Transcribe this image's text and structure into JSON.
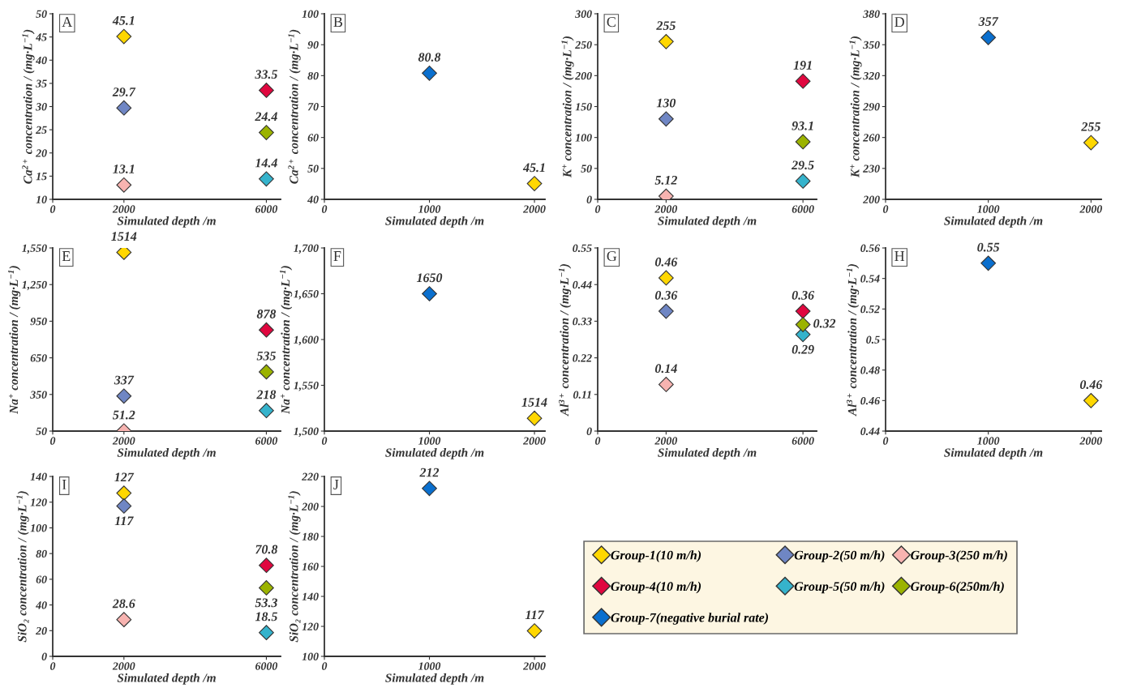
{
  "chart_data": [
    {
      "type": "scatter",
      "annotations": [
        "A"
      ],
      "xlabel": "Simulated depth /m",
      "ylabel": "Ca$^{2+}$ concentration / (mg·L$^{−1}$)",
      "xlim": [
        0,
        6400
      ],
      "xticks": [
        0,
        2000,
        6000
      ],
      "ylim": [
        10,
        50
      ],
      "yticks": [
        10,
        15,
        20,
        25,
        30,
        35,
        40,
        45,
        50
      ],
      "marker": "diamond",
      "data_labels": true,
      "grid": false,
      "legend": "bottom right",
      "series": [
        {
          "name": "Group-1(10 m/h)",
          "color": "#ffd700",
          "x": [
            2000
          ],
          "values": [
            45.1
          ]
        },
        {
          "name": "Group-2(50 m/h)",
          "color": "#6f86c4",
          "x": [
            2000
          ],
          "values": [
            29.7
          ]
        },
        {
          "name": "Group-3(250 m/h)",
          "color": "#f7b3b0",
          "x": [
            2000
          ],
          "values": [
            13.1
          ]
        },
        {
          "name": "Group-4(10 m/h)",
          "color": "#e0073f",
          "x": [
            6000
          ],
          "values": [
            33.5
          ]
        },
        {
          "name": "Group-5(50 m/h)",
          "color": "#35b3cc",
          "x": [
            6000
          ],
          "values": [
            14.4
          ]
        },
        {
          "name": "Group-6(250m/h)",
          "color": "#9bb300",
          "x": [
            6000
          ],
          "values": [
            24.4
          ]
        }
      ]
    },
    {
      "type": "scatter",
      "annotations": [
        "B"
      ],
      "xlabel": "Simulated depth /m",
      "ylabel": "Ca$^{2+}$ concentration / (mg·L$^{−1}$)",
      "xlim": [
        0,
        2100
      ],
      "xticks": [
        0,
        1000,
        2000
      ],
      "ylim": [
        40,
        100
      ],
      "yticks": [
        40,
        50,
        60,
        70,
        80,
        90,
        100
      ],
      "marker": "diamond",
      "data_labels": true,
      "grid": false,
      "series": [
        {
          "name": "Group-7(negative burial rate)",
          "color": "#0a6fce",
          "x": [
            1000
          ],
          "values": [
            80.8
          ]
        },
        {
          "name": "Group-1(10 m/h)",
          "color": "#ffd700",
          "x": [
            2000
          ],
          "values": [
            45.1
          ]
        }
      ]
    },
    {
      "type": "scatter",
      "annotations": [
        "C"
      ],
      "xlabel": "Simulated depth /m",
      "ylabel": "K$^{+}$ concentration / (mg·L$^{−1}$)",
      "xlim": [
        0,
        6400
      ],
      "xticks": [
        0,
        2000,
        6000
      ],
      "ylim": [
        0,
        300
      ],
      "yticks": [
        0,
        50,
        100,
        150,
        200,
        250,
        300
      ],
      "marker": "diamond",
      "data_labels": true,
      "grid": false,
      "series": [
        {
          "name": "Group-1(10 m/h)",
          "color": "#ffd700",
          "x": [
            2000
          ],
          "values": [
            255
          ]
        },
        {
          "name": "Group-2(50 m/h)",
          "color": "#6f86c4",
          "x": [
            2000
          ],
          "values": [
            130
          ]
        },
        {
          "name": "Group-3(250 m/h)",
          "color": "#f7b3b0",
          "x": [
            2000
          ],
          "values": [
            5.12
          ]
        },
        {
          "name": "Group-4(10 m/h)",
          "color": "#e0073f",
          "x": [
            6000
          ],
          "values": [
            191
          ]
        },
        {
          "name": "Group-5(50 m/h)",
          "color": "#35b3cc",
          "x": [
            6000
          ],
          "values": [
            29.5
          ]
        },
        {
          "name": "Group-6(250m/h)",
          "color": "#9bb300",
          "x": [
            6000
          ],
          "values": [
            93.1
          ]
        }
      ]
    },
    {
      "type": "scatter",
      "annotations": [
        "D"
      ],
      "xlabel": "Simulated depth /m",
      "ylabel": "K$^{+}$ concentration / (mg·L$^{−1}$)",
      "xlim": [
        0,
        2100
      ],
      "xticks": [
        0,
        1000,
        2000
      ],
      "ylim": [
        200,
        380
      ],
      "yticks": [
        200,
        230,
        260,
        290,
        320,
        350,
        380
      ],
      "marker": "diamond",
      "data_labels": true,
      "grid": false,
      "series": [
        {
          "name": "Group-7(negative burial rate)",
          "color": "#0a6fce",
          "x": [
            1000
          ],
          "values": [
            357
          ]
        },
        {
          "name": "Group-1(10 m/h)",
          "color": "#ffd700",
          "x": [
            2000
          ],
          "values": [
            255
          ]
        }
      ]
    },
    {
      "type": "scatter",
      "annotations": [
        "E"
      ],
      "xlabel": "Simulated depth /m",
      "ylabel": "Na$^{+}$ concentration / (mg·L$^{−1}$)",
      "xlim": [
        0,
        6400
      ],
      "xticks": [
        0,
        2000,
        6000
      ],
      "ylim": [
        50,
        1550
      ],
      "yticks": [
        50,
        350,
        650,
        950,
        {
          "value": 1250,
          "label": "1,250"
        },
        {
          "value": 1550,
          "label": "1,550"
        }
      ],
      "marker": "diamond",
      "data_labels": true,
      "grid": false,
      "series": [
        {
          "name": "Group-1(10 m/h)",
          "color": "#ffd700",
          "x": [
            2000
          ],
          "values": [
            1514
          ]
        },
        {
          "name": "Group-2(50 m/h)",
          "color": "#6f86c4",
          "x": [
            2000
          ],
          "values": [
            337
          ]
        },
        {
          "name": "Group-3(250 m/h)",
          "color": "#f7b3b0",
          "x": [
            2000
          ],
          "values": [
            51.2
          ]
        },
        {
          "name": "Group-4(10 m/h)",
          "color": "#e0073f",
          "x": [
            6000
          ],
          "values": [
            878
          ]
        },
        {
          "name": "Group-5(50 m/h)",
          "color": "#35b3cc",
          "x": [
            6000
          ],
          "values": [
            218
          ]
        },
        {
          "name": "Group-6(250m/h)",
          "color": "#9bb300",
          "x": [
            6000
          ],
          "values": [
            535
          ]
        }
      ]
    },
    {
      "type": "scatter",
      "annotations": [
        "F"
      ],
      "xlabel": "Simulated depth /m",
      "ylabel": "Na$^{+}$ concentration / (mg·L$^{−1}$)",
      "xlim": [
        0,
        2100
      ],
      "xticks": [
        0,
        1000,
        2000
      ],
      "ylim": [
        1500,
        1700
      ],
      "yticks": [
        {
          "value": 1500,
          "label": "1,500"
        },
        {
          "value": 1550,
          "label": "1,550"
        },
        {
          "value": 1600,
          "label": "1,600"
        },
        {
          "value": 1650,
          "label": "1,650"
        },
        {
          "value": 1700,
          "label": "1,700"
        }
      ],
      "marker": "diamond",
      "data_labels": true,
      "grid": false,
      "series": [
        {
          "name": "Group-7(negative burial rate)",
          "color": "#0a6fce",
          "x": [
            1000
          ],
          "values": [
            1650
          ]
        },
        {
          "name": "Group-1(10 m/h)",
          "color": "#ffd700",
          "x": [
            2000
          ],
          "values": [
            1514
          ]
        }
      ]
    },
    {
      "type": "scatter",
      "annotations": [
        "G"
      ],
      "xlabel": "Simulated depth /m",
      "ylabel": "Al$^{3+}$ concentration / (mg·L$^{−1}$)",
      "xlim": [
        0,
        6400
      ],
      "xticks": [
        0,
        2000,
        6000
      ],
      "ylim": [
        0,
        0.55
      ],
      "yticks": [
        0,
        0.11,
        0.22,
        0.33,
        0.44,
        0.55
      ],
      "marker": "diamond",
      "data_labels": true,
      "grid": false,
      "series": [
        {
          "name": "Group-1(10 m/h)",
          "color": "#ffd700",
          "x": [
            2000
          ],
          "values": [
            0.46
          ]
        },
        {
          "name": "Group-2(50 m/h)",
          "color": "#6f86c4",
          "x": [
            2000
          ],
          "values": [
            0.36
          ]
        },
        {
          "name": "Group-3(250 m/h)",
          "color": "#f7b3b0",
          "x": [
            2000
          ],
          "values": [
            0.14
          ]
        },
        {
          "name": "Group-4(10 m/h)",
          "color": "#e0073f",
          "x": [
            6000
          ],
          "values": [
            0.36
          ]
        },
        {
          "name": "Group-5(50 m/h)",
          "color": "#35b3cc",
          "x": [
            6000
          ],
          "values": [
            0.29
          ]
        },
        {
          "name": "Group-6(250m/h)",
          "color": "#9bb300",
          "x": [
            6000
          ],
          "values": [
            0.32
          ]
        }
      ]
    },
    {
      "type": "scatter",
      "annotations": [
        "H"
      ],
      "xlabel": "Simulated depth /m",
      "ylabel": "Al$^{3+}$ concentration / (mg·L$^{−1}$)",
      "xlim": [
        0,
        2100
      ],
      "xticks": [
        0,
        1000,
        2000
      ],
      "ylim": [
        0.44,
        0.56
      ],
      "yticks": [
        0.44,
        0.46,
        0.48,
        0.5,
        0.52,
        0.54,
        0.56
      ],
      "marker": "diamond",
      "data_labels": true,
      "grid": false,
      "series": [
        {
          "name": "Group-7(negative burial rate)",
          "color": "#0a6fce",
          "x": [
            1000
          ],
          "values": [
            0.55
          ]
        },
        {
          "name": "Group-1(10 m/h)",
          "color": "#ffd700",
          "x": [
            2000
          ],
          "values": [
            0.46
          ]
        }
      ]
    },
    {
      "type": "scatter",
      "annotations": [
        "I"
      ],
      "xlabel": "Simulated depth /m",
      "ylabel": "SiO₂ concentration / (mg·L$^{−1}$)",
      "xlim": [
        0,
        6400
      ],
      "xticks": [
        0,
        2000,
        6000
      ],
      "ylim": [
        0,
        140
      ],
      "yticks": [
        0,
        20,
        40,
        60,
        80,
        100,
        120,
        140
      ],
      "marker": "diamond",
      "data_labels": true,
      "grid": false,
      "series": [
        {
          "name": "Group-1(10 m/h)",
          "color": "#ffd700",
          "x": [
            2000
          ],
          "values": [
            127
          ]
        },
        {
          "name": "Group-2(50 m/h)",
          "color": "#6f86c4",
          "x": [
            2000
          ],
          "values": [
            117
          ]
        },
        {
          "name": "Group-3(250 m/h)",
          "color": "#f7b3b0",
          "x": [
            2000
          ],
          "values": [
            28.6
          ]
        },
        {
          "name": "Group-4(10 m/h)",
          "color": "#e0073f",
          "x": [
            6000
          ],
          "values": [
            70.8
          ]
        },
        {
          "name": "Group-5(50 m/h)",
          "color": "#35b3cc",
          "x": [
            6000
          ],
          "values": [
            18.5
          ]
        },
        {
          "name": "Group-6(250m/h)",
          "color": "#9bb300",
          "x": [
            6000
          ],
          "values": [
            53.3
          ]
        }
      ]
    },
    {
      "type": "scatter",
      "annotations": [
        "J"
      ],
      "xlabel": "Simulated depth /m",
      "ylabel": "SiO₂ concentration / (mg·L$^{−1}$)",
      "xlim": [
        0,
        2100
      ],
      "xticks": [
        0,
        1000,
        2000
      ],
      "ylim": [
        100,
        220
      ],
      "yticks": [
        100,
        120,
        140,
        160,
        180,
        200,
        220
      ],
      "marker": "diamond",
      "data_labels": true,
      "grid": false,
      "series": [
        {
          "name": "Group-7(negative burial rate)",
          "color": "#0a6fce",
          "x": [
            1000
          ],
          "values": [
            212
          ]
        },
        {
          "name": "Group-1(10 m/h)",
          "color": "#ffd700",
          "x": [
            2000
          ],
          "values": [
            117
          ]
        }
      ]
    }
  ]
}
